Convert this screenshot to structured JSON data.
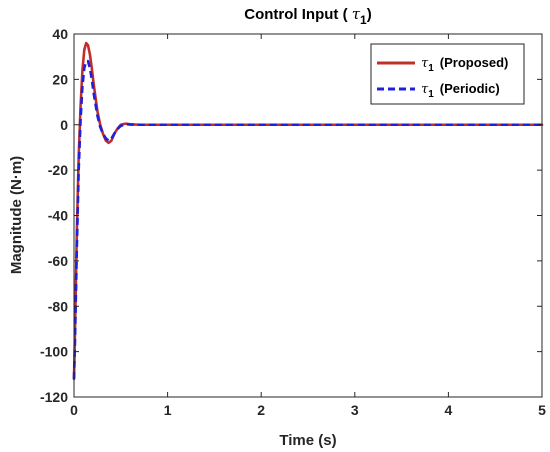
{
  "chart_data": {
    "type": "line",
    "title_prefix": "Control Input ( ",
    "title_symbol": "τ",
    "title_subscript": "1",
    "title_suffix": ")",
    "xlabel": "Time (s)",
    "ylabel": "Magnitude (N·m)",
    "xlim": [
      0,
      5
    ],
    "ylim": [
      -120,
      40
    ],
    "xticks": [
      0,
      1,
      2,
      3,
      4,
      5
    ],
    "yticks": [
      -120,
      -100,
      -80,
      -60,
      -40,
      -20,
      0,
      20,
      40
    ],
    "grid": false,
    "legend_position": "top-right",
    "series": [
      {
        "symbol": "τ",
        "subscript": "1",
        "label": "(Proposed)",
        "color": "#c0302a",
        "style": "solid",
        "x": [
          0,
          0.01,
          0.02,
          0.03,
          0.05,
          0.07,
          0.09,
          0.11,
          0.13,
          0.15,
          0.17,
          0.19,
          0.21,
          0.23,
          0.25,
          0.28,
          0.31,
          0.34,
          0.37,
          0.4,
          0.43,
          0.46,
          0.5,
          0.55,
          0.6,
          0.7,
          1.0,
          2.0,
          3.0,
          4.0,
          5.0
        ],
        "y": [
          -112,
          -92,
          -70,
          -48,
          -14,
          8,
          24,
          33,
          36,
          35,
          31,
          25,
          18,
          12,
          6,
          0,
          -4,
          -7,
          -8,
          -7,
          -4,
          -2,
          0,
          0.5,
          0.2,
          0,
          0,
          0,
          0,
          0,
          0
        ]
      },
      {
        "symbol": "τ",
        "subscript": "1",
        "label": "(Periodic)",
        "color": "#1f1fdc",
        "style": "dashed",
        "x": [
          0,
          0.01,
          0.02,
          0.03,
          0.05,
          0.07,
          0.09,
          0.11,
          0.13,
          0.15,
          0.17,
          0.19,
          0.21,
          0.23,
          0.25,
          0.28,
          0.31,
          0.34,
          0.37,
          0.4,
          0.43,
          0.46,
          0.5,
          0.55,
          0.6,
          0.7,
          1.0,
          2.0,
          3.0,
          4.0,
          5.0
        ],
        "y": [
          -112,
          -96,
          -76,
          -55,
          -20,
          2,
          17,
          25,
          28,
          28,
          25,
          20,
          14,
          9,
          4,
          -1,
          -4,
          -6,
          -7,
          -6,
          -4,
          -2,
          -0.5,
          0.3,
          0.1,
          0,
          0,
          0,
          0,
          0,
          0
        ]
      }
    ]
  }
}
